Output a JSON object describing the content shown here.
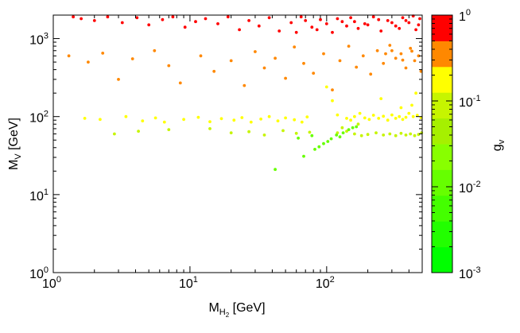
{
  "chart_data": {
    "type": "scatter",
    "title": "",
    "x_axis": {
      "label_main": "M",
      "label_sub": "H",
      "label_subsub": "2",
      "label_unit": " [GeV]",
      "scale": "log",
      "range": [
        1,
        500
      ],
      "ticks": [
        {
          "value": 1,
          "base": "10",
          "exp": "0"
        },
        {
          "value": 10,
          "base": "10",
          "exp": "1"
        },
        {
          "value": 100,
          "base": "10",
          "exp": "2"
        }
      ]
    },
    "y_axis": {
      "label_main": "M",
      "label_sub": "V",
      "label_unit": " [GeV]",
      "scale": "log",
      "range": [
        1,
        2000
      ],
      "ticks": [
        {
          "value": 1,
          "base": "10",
          "exp": "0"
        },
        {
          "value": 10,
          "base": "10",
          "exp": "1"
        },
        {
          "value": 100,
          "base": "10",
          "exp": "2"
        },
        {
          "value": 1000,
          "base": "10",
          "exp": "3"
        }
      ]
    },
    "colorbar": {
      "label_main": "g",
      "label_sub": "v",
      "scale": "log",
      "range": [
        0.001,
        1
      ],
      "ticks": [
        {
          "value": 1,
          "text": "1",
          "exp": "0"
        },
        {
          "value": 0.1,
          "text": "10",
          "exp": "-1"
        },
        {
          "value": 0.01,
          "text": "10",
          "exp": "-2"
        },
        {
          "value": 0.001,
          "text": "10",
          "exp": "-3"
        }
      ],
      "bands": [
        {
          "color": "#00ff00"
        },
        {
          "color": "#22ff00"
        },
        {
          "color": "#44ff00"
        },
        {
          "color": "#66ff00"
        },
        {
          "color": "#88ff00"
        },
        {
          "color": "#a6f000"
        },
        {
          "color": "#c6f500"
        },
        {
          "color": "#ffff00"
        },
        {
          "color": "#ff8800"
        },
        {
          "color": "#ff0000"
        }
      ]
    },
    "grid": false,
    "legend": "none",
    "series": [
      {
        "color": "#ff0000",
        "points": [
          [
            1.4,
            1900
          ],
          [
            1.6,
            1800
          ],
          [
            2.0,
            1700
          ],
          [
            2.5,
            1900
          ],
          [
            3.2,
            1600
          ],
          [
            4.1,
            1850
          ],
          [
            5.0,
            1500
          ],
          [
            6.3,
            1750
          ],
          [
            7.5,
            1900
          ],
          [
            9.2,
            1400
          ],
          [
            11,
            1650
          ],
          [
            13,
            1800
          ],
          [
            16,
            1550
          ],
          [
            19,
            1900
          ],
          [
            23,
            1300
          ],
          [
            27,
            1700
          ],
          [
            32,
            1450
          ],
          [
            38,
            1850
          ],
          [
            45,
            1250
          ],
          [
            55,
            1600
          ],
          [
            65,
            1900
          ],
          [
            78,
            1400
          ],
          [
            90,
            1750
          ],
          [
            110,
            1200
          ],
          [
            130,
            1650
          ],
          [
            150,
            1850
          ],
          [
            170,
            1350
          ],
          [
            190,
            1550
          ],
          [
            220,
            1900
          ],
          [
            250,
            1250
          ],
          [
            280,
            1700
          ],
          [
            320,
            1450
          ],
          [
            360,
            1850
          ],
          [
            400,
            1600
          ],
          [
            450,
            1300
          ],
          [
            480,
            1800
          ],
          [
            200,
            1500
          ],
          [
            240,
            1750
          ],
          [
            300,
            1600
          ],
          [
            340,
            1350
          ],
          [
            380,
            1700
          ],
          [
            430,
            1950
          ],
          [
            470,
            1500
          ],
          [
            160,
            1650
          ],
          [
            140,
            1450
          ],
          [
            120,
            1800
          ],
          [
            100,
            1550
          ],
          [
            85,
            1300
          ],
          [
            70,
            1700
          ],
          [
            60,
            1200
          ]
        ]
      },
      {
        "color": "#ff8800",
        "points": [
          [
            1.3,
            600
          ],
          [
            1.8,
            500
          ],
          [
            2.3,
            650
          ],
          [
            3.0,
            300
          ],
          [
            3.8,
            550
          ],
          [
            5.5,
            700
          ],
          [
            7.0,
            450
          ],
          [
            8.5,
            270
          ],
          [
            12,
            600
          ],
          [
            15,
            380
          ],
          [
            20,
            520
          ],
          [
            25,
            250
          ],
          [
            30,
            680
          ],
          [
            35,
            420
          ],
          [
            42,
            560
          ],
          [
            50,
            310
          ],
          [
            58,
            780
          ],
          [
            68,
            480
          ],
          [
            80,
            360
          ],
          [
            95,
            640
          ],
          [
            110,
            220
          ],
          [
            125,
            520
          ],
          [
            145,
            800
          ],
          [
            165,
            430
          ],
          [
            185,
            600
          ],
          [
            210,
            350
          ],
          [
            235,
            700
          ],
          [
            260,
            480
          ],
          [
            290,
            820
          ],
          [
            320,
            560
          ],
          [
            350,
            640
          ],
          [
            380,
            420
          ],
          [
            410,
            750
          ],
          [
            440,
            520
          ],
          [
            470,
            600
          ],
          [
            490,
            380
          ],
          [
            300,
            700
          ],
          [
            360,
            530
          ],
          [
            420,
            690
          ],
          [
            270,
            640
          ]
        ]
      },
      {
        "color": "#ffff00",
        "points": [
          [
            1.7,
            95
          ],
          [
            2.2,
            92
          ],
          [
            3.4,
            100
          ],
          [
            4.5,
            88
          ],
          [
            5.6,
            96
          ],
          [
            6.5,
            85
          ],
          [
            9.0,
            92
          ],
          [
            11.5,
            98
          ],
          [
            14,
            86
          ],
          [
            17,
            94
          ],
          [
            21,
            90
          ],
          [
            24,
            97
          ],
          [
            28,
            85
          ],
          [
            33,
            93
          ],
          [
            38,
            100
          ],
          [
            44,
            88
          ],
          [
            50,
            96
          ],
          [
            58,
            91
          ],
          [
            66,
            85
          ],
          [
            72,
            99
          ],
          [
            100,
            240
          ],
          [
            110,
            160
          ],
          [
            120,
            105
          ],
          [
            140,
            95
          ],
          [
            150,
            90
          ],
          [
            160,
            100
          ],
          [
            175,
            110
          ],
          [
            190,
            96
          ],
          [
            205,
            92
          ],
          [
            220,
            104
          ],
          [
            240,
            95
          ],
          [
            260,
            101
          ],
          [
            280,
            90
          ],
          [
            300,
            105
          ],
          [
            320,
            95
          ],
          [
            340,
            100
          ],
          [
            360,
            92
          ],
          [
            380,
            98
          ],
          [
            400,
            110
          ],
          [
            430,
            100
          ],
          [
            460,
            104
          ],
          [
            490,
            97
          ],
          [
            250,
            170
          ],
          [
            350,
            130
          ],
          [
            450,
            200
          ],
          [
            420,
            140
          ]
        ]
      },
      {
        "color": "#c6f500",
        "points": [
          [
            2.8,
            60
          ],
          [
            4.2,
            65
          ],
          [
            7.0,
            68
          ],
          [
            14,
            70
          ],
          [
            20,
            62
          ],
          [
            27,
            64
          ],
          [
            35,
            58
          ],
          [
            48,
            66
          ],
          [
            60,
            61
          ],
          [
            75,
            63
          ],
          [
            120,
            62
          ],
          [
            140,
            65
          ],
          [
            160,
            60
          ],
          [
            180,
            57
          ],
          [
            200,
            59
          ],
          [
            230,
            62
          ],
          [
            260,
            58
          ],
          [
            290,
            60
          ],
          [
            320,
            57
          ],
          [
            350,
            61
          ],
          [
            380,
            58
          ],
          [
            410,
            60
          ],
          [
            440,
            57
          ],
          [
            470,
            59
          ],
          [
            495,
            62
          ],
          [
            130,
            72
          ],
          [
            170,
            80
          ]
        ]
      },
      {
        "color": "#66ff00",
        "points": [
          [
            42,
            21
          ],
          [
            68,
            31
          ],
          [
            82,
            38
          ],
          [
            95,
            45
          ],
          [
            108,
            52
          ],
          [
            118,
            58
          ],
          [
            132,
            62
          ],
          [
            145,
            68
          ],
          [
            155,
            72
          ],
          [
            165,
            74
          ],
          [
            88,
            41
          ],
          [
            102,
            48
          ],
          [
            125,
            55
          ],
          [
            62,
            53
          ],
          [
            78,
            57
          ]
        ]
      }
    ]
  }
}
